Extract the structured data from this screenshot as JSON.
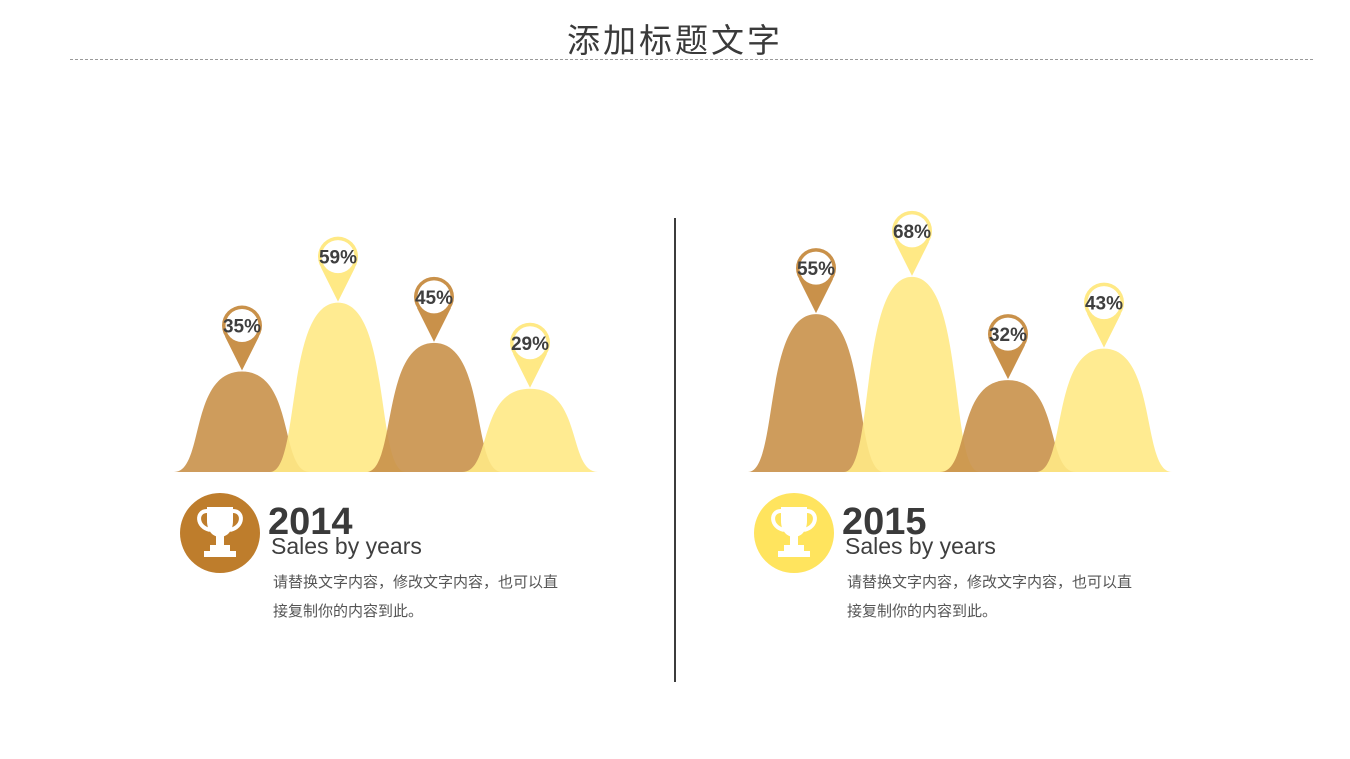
{
  "slide": {
    "title": "添加标题文字"
  },
  "colors": {
    "dark": "#C9914A",
    "light": "#FFE985",
    "dark_badge": "#BE7D2C",
    "light_badge": "#FFE45E"
  },
  "panels": [
    {
      "year": "2014",
      "subtitle": "Sales by years",
      "description": "请替换文字内容，修改文字内容，也可以直接复制你的内容到此。",
      "icon": "trophy-icon"
    },
    {
      "year": "2015",
      "subtitle": "Sales by years",
      "description": "请替换文字内容，修改文字内容，也可以直接复制你的内容到此。",
      "icon": "trophy-icon"
    }
  ],
  "chart_data": [
    {
      "type": "area",
      "series": [
        {
          "label": "35%",
          "value": 35,
          "color": "dark"
        },
        {
          "label": "59%",
          "value": 59,
          "color": "light"
        },
        {
          "label": "45%",
          "value": 45,
          "color": "dark"
        },
        {
          "label": "29%",
          "value": 29,
          "color": "light"
        }
      ]
    },
    {
      "type": "area",
      "series": [
        {
          "label": "55%",
          "value": 55,
          "color": "dark"
        },
        {
          "label": "68%",
          "value": 68,
          "color": "light"
        },
        {
          "label": "32%",
          "value": 32,
          "color": "dark"
        },
        {
          "label": "43%",
          "value": 43,
          "color": "light"
        }
      ]
    }
  ]
}
